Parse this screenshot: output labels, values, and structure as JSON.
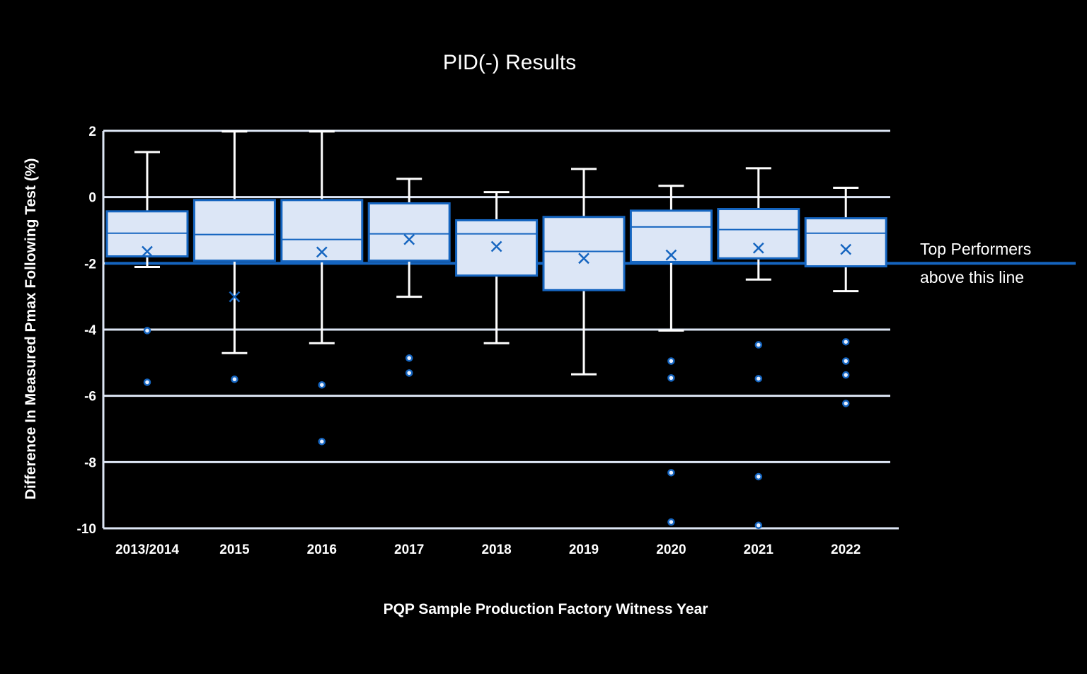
{
  "chart": {
    "title": "PID(-) Results",
    "xlabel": "PQP Sample Production Factory Witness Year",
    "ylabel": "Difference In Measured Pmax Following Test (%)",
    "reference_label_line1": "Top Performers",
    "reference_label_line2": "above this line"
  },
  "colors": {
    "background": "#000000",
    "grid": "#dde6f5",
    "box_fill": "#dce6f6",
    "box_stroke": "#1565c0",
    "whisker": "#ffffff",
    "reference_line": "#1565c0",
    "text": "#ffffff"
  },
  "chart_data": {
    "type": "box",
    "title": "PID(-) Results",
    "xlabel": "PQP Sample Production Factory Witness Year",
    "ylabel": "Difference In Measured Pmax Following Test (%)",
    "ylim": [
      -10,
      2
    ],
    "yticks": [
      2,
      0,
      -2,
      -4,
      -6,
      -8,
      -10
    ],
    "grid": true,
    "reference_line": {
      "y": -2,
      "label": "Top Performers above this line"
    },
    "categories": [
      "2013/2014",
      "2015",
      "2016",
      "2017",
      "2018",
      "2019",
      "2020",
      "2021",
      "2022"
    ],
    "series": [
      {
        "name": "2013/2014",
        "whisker_high": 1.36,
        "q3": -0.43,
        "median": -1.09,
        "q1": -1.79,
        "whisker_low": -2.11,
        "mean": -1.64,
        "outliers": [
          -4.03,
          -5.59
        ]
      },
      {
        "name": "2015",
        "whisker_high": 1.98,
        "q3": -0.09,
        "median": -1.13,
        "q1": -1.92,
        "whisker_low": -4.71,
        "mean": -3.01,
        "outliers": [
          -5.5
        ]
      },
      {
        "name": "2016",
        "whisker_high": 1.98,
        "q3": -0.09,
        "median": -1.28,
        "q1": -1.94,
        "whisker_low": -4.41,
        "mean": -1.66,
        "outliers": [
          -5.67,
          -7.38
        ]
      },
      {
        "name": "2017",
        "whisker_high": 0.55,
        "q3": -0.19,
        "median": -1.11,
        "q1": -1.92,
        "whisker_low": -3.01,
        "mean": -1.28,
        "outliers": [
          -4.86,
          -5.31
        ]
      },
      {
        "name": "2018",
        "whisker_high": 0.15,
        "q3": -0.7,
        "median": -1.11,
        "q1": -2.37,
        "whisker_low": -4.41,
        "mean": -1.49,
        "outliers": []
      },
      {
        "name": "2019",
        "whisker_high": 0.85,
        "q3": -0.6,
        "median": -1.64,
        "q1": -2.81,
        "whisker_low": -5.35,
        "mean": -1.85,
        "outliers": []
      },
      {
        "name": "2020",
        "whisker_high": 0.34,
        "q3": -0.41,
        "median": -0.9,
        "q1": -1.96,
        "whisker_low": -4.03,
        "mean": -1.75,
        "outliers": [
          -4.95,
          -5.46,
          -8.32,
          -9.81
        ]
      },
      {
        "name": "2021",
        "whisker_high": 0.87,
        "q3": -0.36,
        "median": -0.98,
        "q1": -1.85,
        "whisker_low": -2.49,
        "mean": -1.54,
        "outliers": [
          -4.46,
          -5.48,
          -8.44,
          -9.91
        ]
      },
      {
        "name": "2022",
        "whisker_high": 0.28,
        "q3": -0.64,
        "median": -1.09,
        "q1": -2.09,
        "whisker_low": -2.84,
        "mean": -1.58,
        "outliers": [
          -4.37,
          -4.95,
          -5.37,
          -6.23
        ]
      }
    ]
  }
}
